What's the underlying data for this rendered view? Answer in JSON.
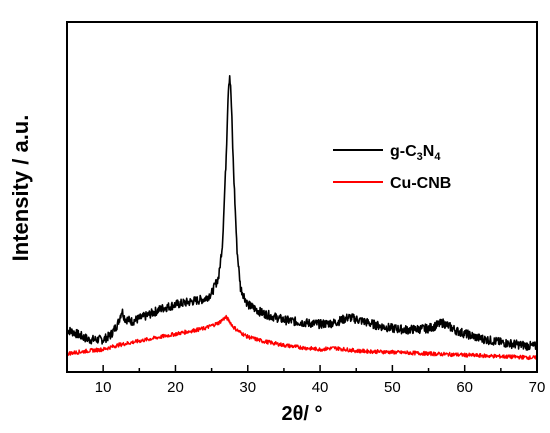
{
  "chart_data": {
    "type": "line",
    "xlabel": "2θ/ °",
    "ylabel": "Intensity / a.u.",
    "xlim": [
      5,
      70
    ],
    "ylim": [
      0,
      100
    ],
    "xticks": [
      "10",
      "20",
      "30",
      "40",
      "50",
      "60",
      "70"
    ],
    "y_ticks_labeled": false,
    "grid": false,
    "legend_position": "top-right",
    "series": [
      {
        "name": "g-C3N4",
        "color": "#000000",
        "x": [
          5,
          6,
          8,
          10,
          11,
          12,
          12.6,
          13,
          14,
          16,
          18,
          20,
          22,
          24,
          25,
          26,
          26.5,
          27,
          27.3,
          27.5,
          27.7,
          28,
          28.5,
          29,
          30,
          32,
          35,
          38,
          40,
          42,
          44,
          46,
          48,
          50,
          52,
          55,
          57,
          59,
          62,
          65,
          68,
          70
        ],
        "values": [
          9,
          8,
          5.5,
          5.5,
          7,
          11,
          16,
          13,
          12,
          14,
          16.5,
          18,
          19,
          20,
          22,
          28,
          40,
          70,
          95,
          100,
          92,
          68,
          38,
          24,
          18,
          15,
          12.5,
          11.5,
          11,
          11.5,
          13.5,
          12,
          10.5,
          9.5,
          9,
          9.5,
          11.5,
          8.5,
          6,
          4.5,
          3.5,
          3
        ]
      },
      {
        "name": "Cu-CNB",
        "color": "#ff0000",
        "display_name_parts": [
          "Cu-CNB"
        ],
        "x": [
          5,
          8,
          10,
          12,
          14,
          16,
          18,
          20,
          22,
          24,
          25,
          26,
          26.7,
          27,
          27.5,
          28,
          29,
          30,
          32,
          35,
          38,
          40,
          42,
          45,
          50,
          55,
          60,
          65,
          70
        ],
        "values": [
          0.5,
          1.5,
          2,
          3.5,
          4.5,
          5.5,
          6.5,
          7.5,
          8.5,
          9.5,
          10.5,
          11.5,
          13,
          13.5,
          12,
          10,
          8,
          6.5,
          5,
          3.5,
          2.5,
          2,
          2.5,
          1.5,
          1,
          0.5,
          0,
          -0.5,
          -1
        ]
      }
    ]
  }
}
